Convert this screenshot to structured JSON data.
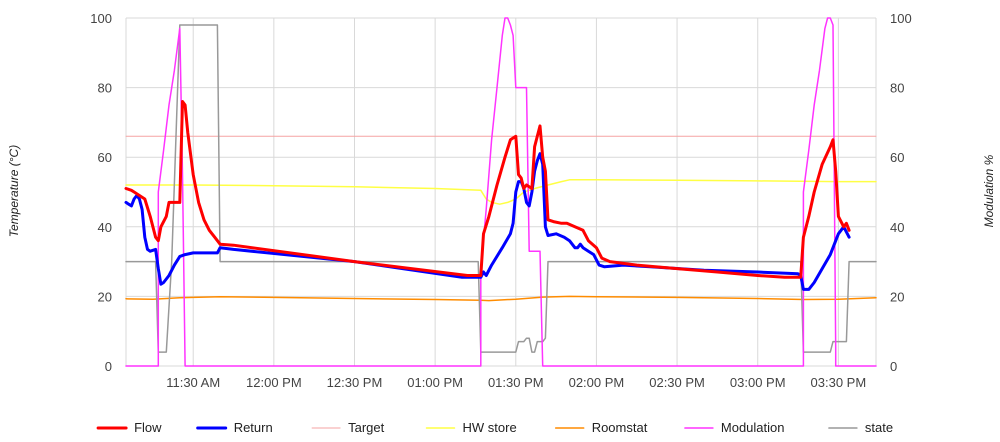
{
  "chart_data": {
    "type": "line",
    "ylabel_left": "Temperature (°C)",
    "ylabel_right": "Modulation %",
    "ylim": [
      0,
      100
    ],
    "y_ticks": [
      "0",
      "20",
      "40",
      "60",
      "80",
      "100"
    ],
    "x_range": [
      "11:05",
      "15:44"
    ],
    "x_ticks": [
      {
        "time": "11:30",
        "label": "11:30 AM"
      },
      {
        "time": "12:00",
        "label": "12:00 PM"
      },
      {
        "time": "12:30",
        "label": "12:30 PM"
      },
      {
        "time": "13:00",
        "label": "01:00 PM"
      },
      {
        "time": "13:30",
        "label": "01:30 PM"
      },
      {
        "time": "14:00",
        "label": "02:00 PM"
      },
      {
        "time": "14:30",
        "label": "02:30 PM"
      },
      {
        "time": "15:00",
        "label": "03:00 PM"
      },
      {
        "time": "15:30",
        "label": "03:30 PM"
      }
    ],
    "grid": true,
    "legend_position": "bottom",
    "series": [
      {
        "name": "Flow",
        "color": "#ff0000",
        "width": 3,
        "points": [
          [
            "11:05",
            51
          ],
          [
            "11:07",
            50.5
          ],
          [
            "11:08",
            50
          ],
          [
            "11:10",
            49
          ],
          [
            "11:12",
            48
          ],
          [
            "11:14",
            43
          ],
          [
            "11:16",
            37
          ],
          [
            "11:17",
            36
          ],
          [
            "11:18",
            40
          ],
          [
            "11:20",
            43
          ],
          [
            "11:21",
            47
          ],
          [
            "11:24",
            47
          ],
          [
            "11:25",
            47
          ],
          [
            "11:26",
            76
          ],
          [
            "11:27",
            75
          ],
          [
            "11:28",
            67
          ],
          [
            "11:30",
            55
          ],
          [
            "11:32",
            47
          ],
          [
            "11:34",
            42
          ],
          [
            "11:36",
            39
          ],
          [
            "11:38",
            37
          ],
          [
            "11:40",
            35
          ],
          [
            "11:45",
            34.7
          ],
          [
            "12:30",
            30
          ],
          [
            "13:12",
            26
          ],
          [
            "13:17",
            26
          ],
          [
            "13:18",
            38
          ],
          [
            "13:20",
            43
          ],
          [
            "13:23",
            52
          ],
          [
            "13:26",
            60
          ],
          [
            "13:28",
            65
          ],
          [
            "13:30",
            66
          ],
          [
            "13:31",
            55
          ],
          [
            "13:32",
            54
          ],
          [
            "13:33",
            51
          ],
          [
            "13:34",
            52
          ],
          [
            "13:36",
            51
          ],
          [
            "13:37",
            63
          ],
          [
            "13:38",
            66
          ],
          [
            "13:39",
            69
          ],
          [
            "13:40",
            60
          ],
          [
            "13:41",
            56
          ],
          [
            "13:42",
            42
          ],
          [
            "13:44",
            41.5
          ],
          [
            "13:47",
            41
          ],
          [
            "13:49",
            41
          ],
          [
            "13:52",
            40
          ],
          [
            "13:55",
            39
          ],
          [
            "13:57",
            36
          ],
          [
            "14:00",
            34
          ],
          [
            "14:02",
            31
          ],
          [
            "14:05",
            30
          ],
          [
            "14:15",
            29
          ],
          [
            "14:30",
            28
          ],
          [
            "14:45",
            27
          ],
          [
            "15:00",
            26
          ],
          [
            "15:10",
            25.5
          ],
          [
            "15:16",
            25.5
          ],
          [
            "15:17",
            37
          ],
          [
            "15:19",
            43
          ],
          [
            "15:21",
            50
          ],
          [
            "15:24",
            58
          ],
          [
            "15:27",
            63
          ],
          [
            "15:28",
            65
          ],
          [
            "15:29",
            56
          ],
          [
            "15:30",
            43
          ],
          [
            "15:32",
            40
          ],
          [
            "15:33",
            41
          ],
          [
            "15:34",
            39
          ]
        ]
      },
      {
        "name": "Return",
        "color": "#0000ff",
        "width": 3,
        "points": [
          [
            "11:05",
            47
          ],
          [
            "11:06",
            46.5
          ],
          [
            "11:07",
            46
          ],
          [
            "11:08",
            48
          ],
          [
            "11:09",
            49
          ],
          [
            "11:10",
            48
          ],
          [
            "11:11",
            45
          ],
          [
            "11:12",
            37
          ],
          [
            "11:13",
            33.5
          ],
          [
            "11:14",
            33
          ],
          [
            "11:16",
            33.5
          ],
          [
            "11:17",
            28
          ],
          [
            "11:18",
            23.5
          ],
          [
            "11:19",
            24
          ],
          [
            "11:21",
            26
          ],
          [
            "11:23",
            29
          ],
          [
            "11:25",
            31.5
          ],
          [
            "11:27",
            32
          ],
          [
            "11:30",
            32.5
          ],
          [
            "11:35",
            32.5
          ],
          [
            "11:39",
            32.5
          ],
          [
            "11:40",
            34
          ],
          [
            "11:45",
            33.5
          ],
          [
            "12:30",
            30
          ],
          [
            "13:10",
            25.5
          ],
          [
            "13:17",
            25.5
          ],
          [
            "13:18",
            27
          ],
          [
            "13:19",
            26
          ],
          [
            "13:21",
            29
          ],
          [
            "13:25",
            34
          ],
          [
            "13:28",
            38
          ],
          [
            "13:29",
            41
          ],
          [
            "13:30",
            50
          ],
          [
            "13:31",
            53
          ],
          [
            "13:32",
            53
          ],
          [
            "13:33",
            51
          ],
          [
            "13:34",
            47
          ],
          [
            "13:35",
            46
          ],
          [
            "13:36",
            50
          ],
          [
            "13:37",
            56
          ],
          [
            "13:38",
            59
          ],
          [
            "13:39",
            61
          ],
          [
            "13:40",
            58
          ],
          [
            "13:41",
            40
          ],
          [
            "13:42",
            37.5
          ],
          [
            "13:45",
            38
          ],
          [
            "13:48",
            37
          ],
          [
            "13:50",
            36
          ],
          [
            "13:52",
            34
          ],
          [
            "13:53",
            34
          ],
          [
            "13:54",
            35
          ],
          [
            "13:55",
            34
          ],
          [
            "13:57",
            33
          ],
          [
            "13:59",
            32
          ],
          [
            "14:01",
            29
          ],
          [
            "14:03",
            28.5
          ],
          [
            "14:10",
            29
          ],
          [
            "14:20",
            28.5
          ],
          [
            "14:40",
            27.5
          ],
          [
            "15:00",
            27
          ],
          [
            "15:15",
            26.5
          ],
          [
            "15:16",
            26
          ],
          [
            "15:17",
            22
          ],
          [
            "15:19",
            22
          ],
          [
            "15:21",
            24
          ],
          [
            "15:24",
            28
          ],
          [
            "15:27",
            32
          ],
          [
            "15:30",
            38
          ],
          [
            "15:32",
            40
          ],
          [
            "15:34",
            37
          ]
        ]
      },
      {
        "name": "Target",
        "color": "#f5a3a3",
        "width": 1,
        "points": [
          [
            "11:05",
            66
          ],
          [
            "15:44",
            66
          ]
        ]
      },
      {
        "name": "HW store",
        "color": "#ffff44",
        "width": 1.5,
        "points": [
          [
            "11:05",
            52
          ],
          [
            "11:30",
            52
          ],
          [
            "12:00",
            51.8
          ],
          [
            "12:30",
            51.5
          ],
          [
            "13:00",
            51
          ],
          [
            "13:17",
            50.5
          ],
          [
            "13:19",
            48
          ],
          [
            "13:21",
            47
          ],
          [
            "13:24",
            46.5
          ],
          [
            "13:27",
            47
          ],
          [
            "13:30",
            48
          ],
          [
            "13:33",
            50
          ],
          [
            "13:37",
            51
          ],
          [
            "13:42",
            52
          ],
          [
            "13:47",
            53
          ],
          [
            "13:50",
            53.5
          ],
          [
            "14:00",
            53.5
          ],
          [
            "14:30",
            53.4
          ],
          [
            "15:00",
            53.2
          ],
          [
            "15:30",
            53
          ],
          [
            "15:44",
            53
          ]
        ]
      },
      {
        "name": "Roomstat",
        "color": "#ff8c00",
        "width": 1.5,
        "points": [
          [
            "11:05",
            19.3
          ],
          [
            "11:15",
            19.2
          ],
          [
            "11:25",
            19.6
          ],
          [
            "11:30",
            19.7
          ],
          [
            "11:40",
            19.9
          ],
          [
            "12:00",
            19.7
          ],
          [
            "12:30",
            19.4
          ],
          [
            "13:00",
            19.1
          ],
          [
            "13:17",
            18.9
          ],
          [
            "13:20",
            18.8
          ],
          [
            "13:30",
            19.2
          ],
          [
            "13:40",
            19.8
          ],
          [
            "13:50",
            20.0
          ],
          [
            "14:00",
            19.9
          ],
          [
            "14:30",
            19.7
          ],
          [
            "15:00",
            19.4
          ],
          [
            "15:17",
            19.1
          ],
          [
            "15:30",
            19.2
          ],
          [
            "15:44",
            19.6
          ]
        ]
      },
      {
        "name": "Modulation",
        "color": "#ff33ff",
        "width": 1.5,
        "points": [
          [
            "11:05",
            0
          ],
          [
            "11:17",
            0
          ],
          [
            "11:17",
            50
          ],
          [
            "11:19",
            62
          ],
          [
            "11:21",
            75
          ],
          [
            "11:23",
            85
          ],
          [
            "11:25",
            97
          ],
          [
            "11:26",
            55
          ],
          [
            "11:27",
            0
          ],
          [
            "13:17",
            0
          ],
          [
            "13:17",
            28
          ],
          [
            "13:19",
            45
          ],
          [
            "13:21",
            65
          ],
          [
            "13:23",
            80
          ],
          [
            "13:25",
            95
          ],
          [
            "13:26",
            100
          ],
          [
            "13:27",
            100
          ],
          [
            "13:28",
            98
          ],
          [
            "13:29",
            95
          ],
          [
            "13:30",
            80
          ],
          [
            "13:33",
            80
          ],
          [
            "13:34",
            80
          ],
          [
            "13:35",
            33
          ],
          [
            "13:38",
            33
          ],
          [
            "13:39",
            33
          ],
          [
            "13:40",
            0
          ],
          [
            "15:17",
            0
          ],
          [
            "15:17",
            50
          ],
          [
            "15:19",
            62
          ],
          [
            "15:21",
            75
          ],
          [
            "15:23",
            85
          ],
          [
            "15:25",
            97
          ],
          [
            "15:26",
            100
          ],
          [
            "15:27",
            100
          ],
          [
            "15:28",
            98
          ],
          [
            "15:29",
            5
          ],
          [
            "15:29",
            0
          ],
          [
            "15:44",
            0
          ]
        ]
      },
      {
        "name": "state",
        "color": "#999999",
        "width": 1.5,
        "points": [
          [
            "11:05",
            30
          ],
          [
            "11:16",
            30
          ],
          [
            "11:17",
            4
          ],
          [
            "11:20",
            4
          ],
          [
            "11:22",
            30
          ],
          [
            "11:25",
            98
          ],
          [
            "11:32",
            98
          ],
          [
            "11:39",
            98
          ],
          [
            "11:40",
            30
          ],
          [
            "13:16",
            30
          ],
          [
            "13:17",
            4
          ],
          [
            "13:30",
            4
          ],
          [
            "13:31",
            7
          ],
          [
            "13:33",
            7
          ],
          [
            "13:34",
            8
          ],
          [
            "13:35",
            8
          ],
          [
            "13:36",
            4
          ],
          [
            "13:37",
            4
          ],
          [
            "13:38",
            7
          ],
          [
            "13:40",
            7
          ],
          [
            "13:41",
            8
          ],
          [
            "13:42",
            30
          ],
          [
            "15:16",
            30
          ],
          [
            "15:17",
            4
          ],
          [
            "15:23",
            4
          ],
          [
            "15:25",
            4
          ],
          [
            "15:27",
            4
          ],
          [
            "15:28",
            7
          ],
          [
            "15:29",
            7
          ],
          [
            "15:30",
            7
          ],
          [
            "15:31",
            7
          ],
          [
            "15:32",
            7
          ],
          [
            "15:33",
            7
          ],
          [
            "15:34",
            30
          ],
          [
            "15:44",
            30
          ]
        ]
      }
    ]
  }
}
